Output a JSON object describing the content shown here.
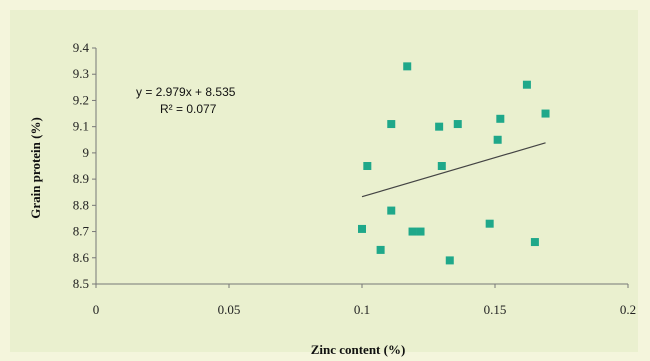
{
  "chart_data": {
    "type": "scatter",
    "title": "",
    "xlabel": "Zinc content (%)",
    "ylabel": "Grain protein (%)",
    "xlim": [
      0,
      0.2
    ],
    "ylim": [
      8.5,
      9.4
    ],
    "x_ticks": [
      "0",
      "0.05",
      "0.1",
      "0.15",
      "0.2"
    ],
    "y_ticks": [
      "8.5",
      "8.6",
      "8.7",
      "8.8",
      "8.9",
      "9",
      "9.1",
      "9.2",
      "9.3",
      "9.4"
    ],
    "grid": false,
    "marker_color": "#1fa88a",
    "line_color": "#444444",
    "points": [
      {
        "x": 0.1,
        "y": 8.71
      },
      {
        "x": 0.102,
        "y": 8.95
      },
      {
        "x": 0.107,
        "y": 8.63
      },
      {
        "x": 0.111,
        "y": 9.11
      },
      {
        "x": 0.111,
        "y": 8.78
      },
      {
        "x": 0.117,
        "y": 9.33
      },
      {
        "x": 0.119,
        "y": 8.7
      },
      {
        "x": 0.122,
        "y": 8.7
      },
      {
        "x": 0.129,
        "y": 9.1
      },
      {
        "x": 0.13,
        "y": 8.95
      },
      {
        "x": 0.133,
        "y": 8.59
      },
      {
        "x": 0.136,
        "y": 9.11
      },
      {
        "x": 0.148,
        "y": 8.73
      },
      {
        "x": 0.151,
        "y": 9.05
      },
      {
        "x": 0.152,
        "y": 9.13
      },
      {
        "x": 0.162,
        "y": 9.26
      },
      {
        "x": 0.165,
        "y": 8.66
      },
      {
        "x": 0.169,
        "y": 9.15
      }
    ],
    "trendline": {
      "slope": 2.979,
      "intercept": 8.535,
      "x_range": [
        0.1,
        0.169
      ]
    },
    "annotations": {
      "equation": "y = 2.979x + 8.535",
      "r_squared": "R² = 0.077"
    }
  }
}
